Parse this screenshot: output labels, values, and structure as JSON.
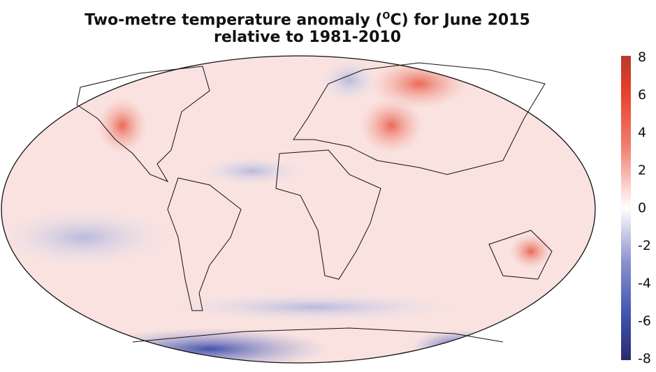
{
  "title": {
    "line1_prefix": "Two-metre temperature anomaly (",
    "unit_sup": "O",
    "line1_suffix": "C) for June 2015",
    "line2": "relative to 1981-2010"
  },
  "colorbar": {
    "min": -8,
    "max": 8,
    "ticks": [
      "8",
      "6",
      "4",
      "2",
      "0",
      "-2",
      "-4",
      "-6",
      "-8"
    ],
    "colors": {
      "max": "#b83a2e",
      "high": "#e8402a",
      "mid": "#ffffff",
      "low": "#4a5db0",
      "min": "#2a2a6e"
    }
  },
  "map": {
    "projection": "Robinson",
    "variable": "2m temperature anomaly",
    "period": "June 2015",
    "baseline": "1981-2010"
  }
}
